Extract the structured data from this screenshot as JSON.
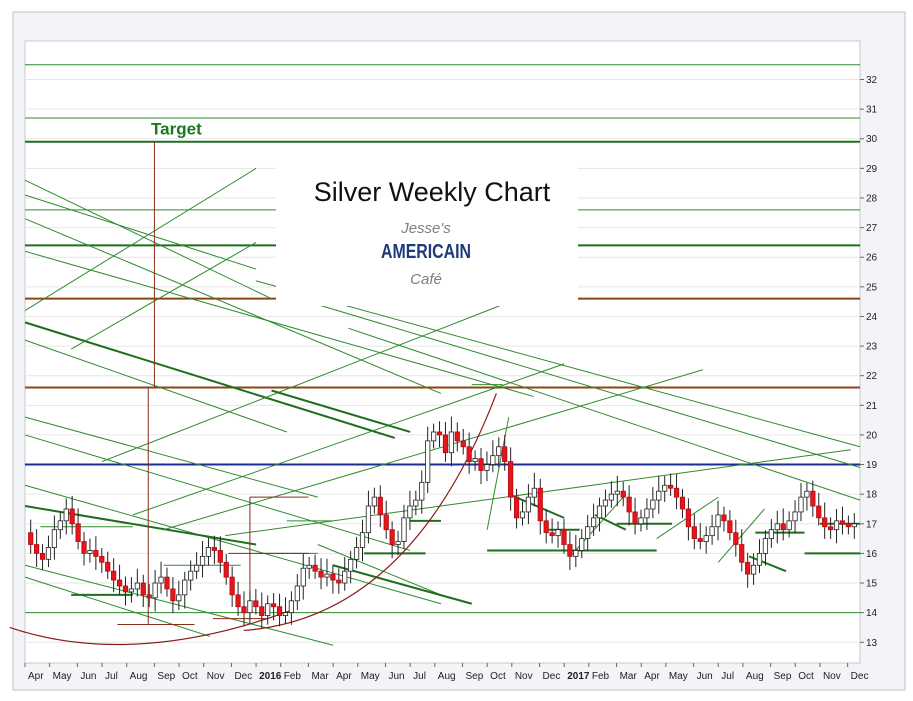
{
  "chart_data": {
    "type": "candlestick",
    "title": "Silver Weekly Chart",
    "logo_text": [
      "Jesse's",
      "AMERICAIN",
      "Café"
    ],
    "annotations": [
      {
        "text": "Target",
        "color": "#1c7a1c"
      }
    ],
    "ylim": [
      12.3,
      33.3
    ],
    "y_ticks": [
      13,
      14,
      15,
      16,
      17,
      18,
      19,
      20,
      21,
      22,
      23,
      24,
      25,
      26,
      27,
      28,
      29,
      30,
      31,
      32
    ],
    "x_range": [
      2015.25,
      2017.96
    ],
    "x_ticks": [
      {
        "label": "Apr",
        "x": 2015.25
      },
      {
        "label": "May",
        "x": 2015.33
      },
      {
        "label": "Jun",
        "x": 2015.42
      },
      {
        "label": "Jul",
        "x": 2015.5
      },
      {
        "label": "Aug",
        "x": 2015.58
      },
      {
        "label": "Sep",
        "x": 2015.67
      },
      {
        "label": "Oct",
        "x": 2015.75
      },
      {
        "label": "Nov",
        "x": 2015.83
      },
      {
        "label": "Dec",
        "x": 2015.92
      },
      {
        "label": "2016",
        "x": 2016.0,
        "bold": true
      },
      {
        "label": "Feb",
        "x": 2016.08
      },
      {
        "label": "Mar",
        "x": 2016.17
      },
      {
        "label": "Apr",
        "x": 2016.25
      },
      {
        "label": "May",
        "x": 2016.33
      },
      {
        "label": "Jun",
        "x": 2016.42
      },
      {
        "label": "Jul",
        "x": 2016.5
      },
      {
        "label": "Aug",
        "x": 2016.58
      },
      {
        "label": "Sep",
        "x": 2016.67
      },
      {
        "label": "Oct",
        "x": 2016.75
      },
      {
        "label": "Nov",
        "x": 2016.83
      },
      {
        "label": "Dec",
        "x": 2016.92
      },
      {
        "label": "2017",
        "x": 2017.0,
        "bold": true
      },
      {
        "label": "Feb",
        "x": 2017.08
      },
      {
        "label": "Mar",
        "x": 2017.17
      },
      {
        "label": "Apr",
        "x": 2017.25
      },
      {
        "label": "May",
        "x": 2017.33
      },
      {
        "label": "Jun",
        "x": 2017.42
      },
      {
        "label": "Jul",
        "x": 2017.5
      },
      {
        "label": "Aug",
        "x": 2017.58
      },
      {
        "label": "Sep",
        "x": 2017.67
      },
      {
        "label": "Oct",
        "x": 2017.75
      },
      {
        "label": "Nov",
        "x": 2017.83
      },
      {
        "label": "Dec",
        "x": 2017.92
      }
    ],
    "weekly_closes_start": 2015.23,
    "weekly_closes": [
      16.9,
      16.7,
      16.3,
      16.0,
      15.8,
      16.2,
      16.8,
      17.1,
      17.5,
      17.0,
      16.4,
      16.0,
      16.1,
      15.9,
      15.7,
      15.4,
      15.1,
      14.9,
      14.7,
      14.8,
      15.0,
      14.6,
      14.5,
      15.0,
      15.2,
      14.8,
      14.4,
      14.6,
      15.1,
      15.4,
      15.6,
      15.9,
      16.2,
      16.1,
      15.7,
      15.2,
      14.6,
      14.2,
      14.0,
      14.4,
      14.2,
      13.9,
      14.3,
      14.2,
      13.9,
      14.0,
      14.4,
      14.9,
      15.5,
      15.6,
      15.4,
      15.2,
      15.3,
      15.1,
      15.0,
      15.4,
      15.8,
      16.2,
      16.7,
      17.6,
      17.9,
      17.3,
      16.8,
      16.3,
      16.4,
      17.2,
      17.6,
      17.8,
      18.4,
      19.8,
      20.1,
      20.0,
      19.4,
      20.1,
      19.8,
      19.6,
      19.1,
      19.2,
      18.8,
      19.0,
      19.3,
      19.6,
      19.1,
      17.9,
      17.2,
      17.4,
      17.9,
      18.2,
      17.1,
      16.7,
      16.6,
      16.8,
      16.3,
      15.9,
      16.1,
      16.5,
      16.9,
      17.2,
      17.6,
      17.8,
      18.0,
      18.1,
      17.9,
      17.4,
      17.0,
      17.2,
      17.5,
      17.8,
      18.1,
      18.3,
      18.2,
      17.9,
      17.5,
      16.9,
      16.5,
      16.4,
      16.6,
      16.9,
      17.3,
      17.1,
      16.7,
      16.3,
      15.7,
      15.3,
      15.6,
      16.0,
      16.5,
      16.8,
      17.0,
      16.8,
      17.1,
      17.4,
      17.9,
      18.1,
      17.6,
      17.2,
      16.9,
      16.8,
      17.1,
      17.0,
      16.9,
      17.0
    ],
    "horizontal_levels": [
      {
        "y": 32.5,
        "color": "#2e8b2e",
        "w": 1
      },
      {
        "y": 30.7,
        "color": "#2e8b2e",
        "w": 1
      },
      {
        "y": 29.9,
        "color": "#1f6e1f",
        "w": 2
      },
      {
        "y": 27.6,
        "color": "#2e8b2e",
        "w": 1
      },
      {
        "y": 26.4,
        "color": "#1f6e1f",
        "w": 2
      },
      {
        "y": 24.6,
        "color": "#8b4513",
        "w": 2
      },
      {
        "y": 21.6,
        "color": "#8b4513",
        "w": 2
      },
      {
        "y": 19.0,
        "color": "#1a2e99",
        "w": 2
      },
      {
        "y": 14.0,
        "color": "#2e8b2e",
        "w": 1
      }
    ],
    "segments": [
      {
        "x1": 2015.2,
        "y1": 28.6,
        "x2": 2016.05,
        "y2": 24.6,
        "c": "#2e8b2e",
        "w": 1
      },
      {
        "x1": 2015.2,
        "y1": 28.1,
        "x2": 2016.0,
        "y2": 25.6,
        "c": "#2e8b2e",
        "w": 1
      },
      {
        "x1": 2015.2,
        "y1": 27.3,
        "x2": 2016.6,
        "y2": 21.4,
        "c": "#2e8b2e",
        "w": 1
      },
      {
        "x1": 2015.2,
        "y1": 26.2,
        "x2": 2016.9,
        "y2": 21.3,
        "c": "#2e8b2e",
        "w": 1
      },
      {
        "x1": 2015.2,
        "y1": 23.8,
        "x2": 2016.45,
        "y2": 19.9,
        "c": "#1f6e1f",
        "w": 2
      },
      {
        "x1": 2015.2,
        "y1": 23.2,
        "x2": 2016.1,
        "y2": 20.1,
        "c": "#2e8b2e",
        "w": 1
      },
      {
        "x1": 2015.2,
        "y1": 20.6,
        "x2": 2016.2,
        "y2": 17.9,
        "c": "#2e8b2e",
        "w": 1
      },
      {
        "x1": 2015.2,
        "y1": 20.0,
        "x2": 2016.5,
        "y2": 16.1,
        "c": "#2e8b2e",
        "w": 1
      },
      {
        "x1": 2015.2,
        "y1": 18.3,
        "x2": 2016.6,
        "y2": 14.3,
        "c": "#2e8b2e",
        "w": 1
      },
      {
        "x1": 2015.2,
        "y1": 17.6,
        "x2": 2016.0,
        "y2": 16.3,
        "c": "#1f6e1f",
        "w": 2
      },
      {
        "x1": 2015.2,
        "y1": 15.6,
        "x2": 2016.25,
        "y2": 12.9,
        "c": "#2e8b2e",
        "w": 1
      },
      {
        "x1": 2015.2,
        "y1": 15.2,
        "x2": 2015.85,
        "y2": 13.2,
        "c": "#2e8b2e",
        "w": 1
      },
      {
        "x1": 2015.2,
        "y1": 24.2,
        "x2": 2016.0,
        "y2": 29.0,
        "c": "#2e8b2e",
        "w": 1
      },
      {
        "x1": 2015.4,
        "y1": 22.9,
        "x2": 2016.0,
        "y2": 26.5,
        "c": "#2e8b2e",
        "w": 1
      },
      {
        "x1": 2015.5,
        "y1": 19.1,
        "x2": 2016.8,
        "y2": 24.4,
        "c": "#2e8b2e",
        "w": 1
      },
      {
        "x1": 2015.6,
        "y1": 17.3,
        "x2": 2017.0,
        "y2": 22.4,
        "c": "#2e8b2e",
        "w": 1
      },
      {
        "x1": 2015.7,
        "y1": 16.8,
        "x2": 2017.45,
        "y2": 22.2,
        "c": "#2e8b2e",
        "w": 1
      },
      {
        "x1": 2015.9,
        "y1": 16.6,
        "x2": 2017.93,
        "y2": 19.5,
        "c": "#2e8b2e",
        "w": 1
      },
      {
        "x1": 2016.0,
        "y1": 25.2,
        "x2": 2017.96,
        "y2": 19.6,
        "c": "#2e8b2e",
        "w": 1
      },
      {
        "x1": 2016.2,
        "y1": 24.4,
        "x2": 2017.96,
        "y2": 18.9,
        "c": "#2e8b2e",
        "w": 1
      },
      {
        "x1": 2016.3,
        "y1": 23.6,
        "x2": 2017.96,
        "y2": 17.8,
        "c": "#2e8b2e",
        "w": 1
      },
      {
        "x1": 2016.05,
        "y1": 21.5,
        "x2": 2016.5,
        "y2": 20.1,
        "c": "#1f6e1f",
        "w": 2
      },
      {
        "x1": 2016.2,
        "y1": 16.3,
        "x2": 2016.6,
        "y2": 14.6,
        "c": "#2e8b2e",
        "w": 1
      },
      {
        "x1": 2016.25,
        "y1": 15.6,
        "x2": 2016.7,
        "y2": 14.3,
        "c": "#1f6e1f",
        "w": 2
      },
      {
        "x1": 2016.82,
        "y1": 18.0,
        "x2": 2017.0,
        "y2": 17.2,
        "c": "#1f6e1f",
        "w": 2
      },
      {
        "x1": 2016.82,
        "y1": 20.6,
        "x2": 2016.75,
        "y2": 16.8,
        "c": "#2e8b2e",
        "w": 1
      },
      {
        "x1": 2017.1,
        "y1": 17.3,
        "x2": 2017.2,
        "y2": 16.8,
        "c": "#1f6e1f",
        "w": 2
      },
      {
        "x1": 2017.6,
        "y1": 15.9,
        "x2": 2017.72,
        "y2": 15.4,
        "c": "#1f6e1f",
        "w": 2
      },
      {
        "x1": 2017.02,
        "y1": 15.9,
        "x2": 2017.2,
        "y2": 18.0,
        "c": "#2e8b2e",
        "w": 1
      },
      {
        "x1": 2017.5,
        "y1": 15.7,
        "x2": 2017.65,
        "y2": 17.5,
        "c": "#2e8b2e",
        "w": 1
      },
      {
        "x1": 2017.3,
        "y1": 16.5,
        "x2": 2017.5,
        "y2": 17.9,
        "c": "#2e8b2e",
        "w": 1
      },
      {
        "x1": 2016.5,
        "y1": 17.1,
        "x2": 2016.6,
        "y2": 17.1,
        "c": "#1f6e1f",
        "w": 2
      },
      {
        "x1": 2015.4,
        "y1": 14.6,
        "x2": 2015.6,
        "y2": 14.6,
        "c": "#1f6e1f",
        "w": 2
      },
      {
        "x1": 2015.3,
        "y1": 16.9,
        "x2": 2015.6,
        "y2": 16.9,
        "c": "#2e8b2e",
        "w": 1
      },
      {
        "x1": 2016.0,
        "y1": 16.0,
        "x2": 2016.2,
        "y2": 16.0,
        "c": "#2e8b2e",
        "w": 1
      },
      {
        "x1": 2015.7,
        "y1": 15.6,
        "x2": 2015.95,
        "y2": 15.6,
        "c": "#2e8b2e",
        "w": 1
      },
      {
        "x1": 2016.95,
        "y1": 16.8,
        "x2": 2017.05,
        "y2": 16.8,
        "c": "#1f6e1f",
        "w": 2
      },
      {
        "x1": 2017.17,
        "y1": 17.0,
        "x2": 2017.35,
        "y2": 17.0,
        "c": "#1f6e1f",
        "w": 2
      },
      {
        "x1": 2017.62,
        "y1": 16.7,
        "x2": 2017.78,
        "y2": 16.7,
        "c": "#1f6e1f",
        "w": 2
      },
      {
        "x1": 2017.83,
        "y1": 17.0,
        "x2": 2017.96,
        "y2": 17.0,
        "c": "#1f6e1f",
        "w": 2
      },
      {
        "x1": 2017.78,
        "y1": 16.0,
        "x2": 2017.96,
        "y2": 16.0,
        "c": "#1f6e1f",
        "w": 2
      },
      {
        "x1": 2016.75,
        "y1": 16.1,
        "x2": 2017.3,
        "y2": 16.1,
        "c": "#1f6e1f",
        "w": 2
      },
      {
        "x1": 2016.35,
        "y1": 16.0,
        "x2": 2016.55,
        "y2": 16.0,
        "c": "#1f6e1f",
        "w": 2
      },
      {
        "x1": 2016.1,
        "y1": 17.1,
        "x2": 2016.25,
        "y2": 17.1,
        "c": "#2e8b2e",
        "w": 1
      },
      {
        "x1": 2016.7,
        "y1": 21.7,
        "x2": 2016.8,
        "y2": 21.7,
        "c": "#2e8b2e",
        "w": 1
      }
    ],
    "brown_lines": [
      {
        "x1": 2015.67,
        "y1": 29.9,
        "x2": 2015.67,
        "y2": 21.6
      },
      {
        "x1": 2015.65,
        "y1": 21.6,
        "x2": 2015.65,
        "y2": 13.6
      },
      {
        "x1": 2015.55,
        "y1": 13.6,
        "x2": 2015.8,
        "y2": 13.6
      },
      {
        "x1": 2015.91,
        "y1": 16.0,
        "x2": 2016.17,
        "y2": 16.0
      },
      {
        "x1": 2015.98,
        "y1": 17.9,
        "x2": 2016.17,
        "y2": 17.9
      },
      {
        "x1": 2015.98,
        "y1": 17.9,
        "x2": 2015.98,
        "y2": 13.8
      },
      {
        "x1": 2015.86,
        "y1": 13.8,
        "x2": 2016.04,
        "y2": 13.8
      }
    ],
    "curves": [
      {
        "p0": [
          2015.2,
          13.5
        ],
        "c": [
          2015.6,
          12.1
        ],
        "p1": [
          2016.12,
          14.1
        ]
      },
      {
        "p0": [
          2015.96,
          13.4
        ],
        "c": [
          2016.5,
          13.8
        ],
        "p1": [
          2016.78,
          21.4
        ]
      }
    ]
  }
}
